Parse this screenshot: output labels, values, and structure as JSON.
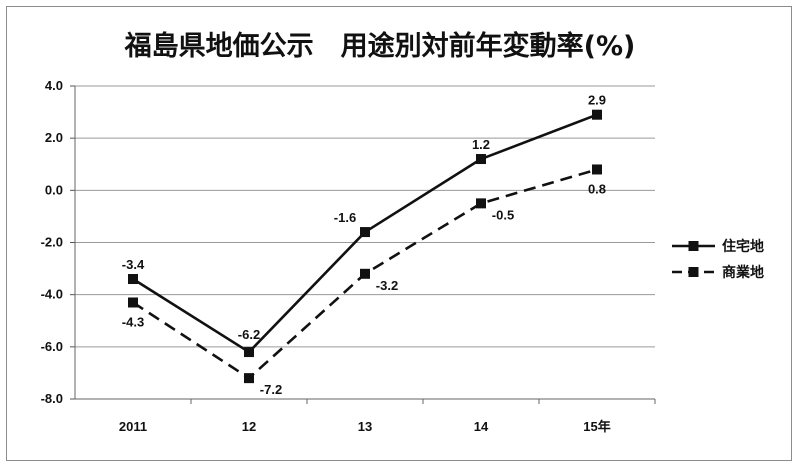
{
  "chart_data": {
    "type": "line",
    "title": "福島県地価公示　用途別対前年変動率(%)",
    "categories": [
      "2011",
      "12",
      "13",
      "14",
      "15年"
    ],
    "ylim": [
      -8.0,
      4.0
    ],
    "yticks": [
      "4.0",
      "2.0",
      "0.0",
      "-2.0",
      "-4.0",
      "-6.0",
      "-8.0"
    ],
    "grid": true,
    "legend_position": "right",
    "series": [
      {
        "name": "住宅地",
        "values": [
          -3.4,
          -6.2,
          -1.6,
          1.2,
          2.9
        ],
        "labels": [
          "-3.4",
          "-6.2",
          "-1.6",
          "1.2",
          "2.9"
        ],
        "style": "solid",
        "color": "#111111"
      },
      {
        "name": "商業地",
        "values": [
          -4.3,
          -7.2,
          -3.2,
          -0.5,
          0.8
        ],
        "labels": [
          "-4.3",
          "-7.2",
          "-3.2",
          "-0.5",
          "0.8"
        ],
        "style": "dashed",
        "color": "#111111"
      }
    ]
  }
}
